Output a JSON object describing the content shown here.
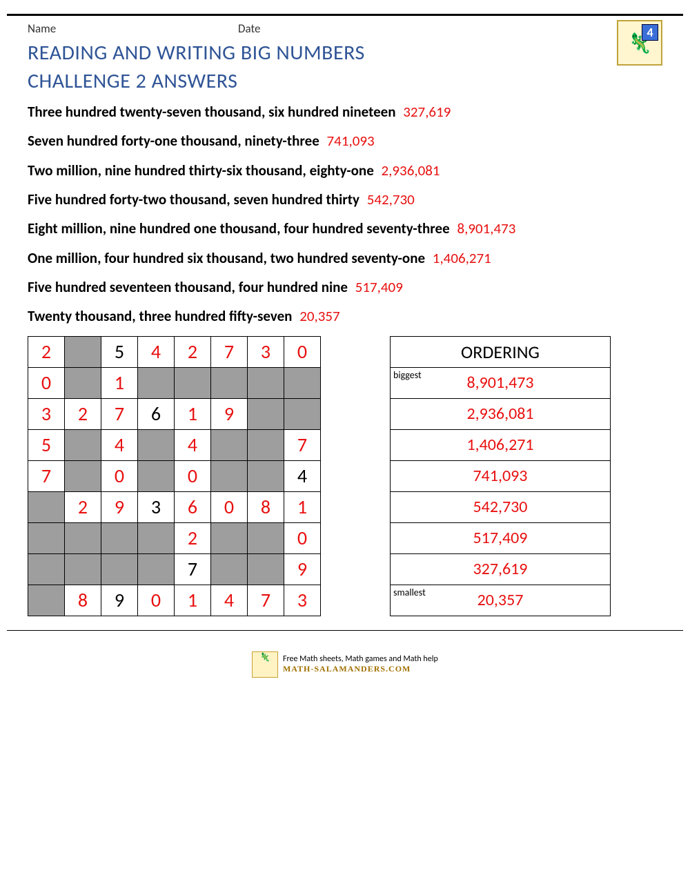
{
  "header": {
    "name_label": "Name",
    "date_label": "Date",
    "badge_number": "4"
  },
  "title_line1": "READING AND WRITING BIG NUMBERS",
  "title_line2": "CHALLENGE 2 ANSWERS",
  "answers": [
    {
      "words": "Three hundred twenty-seven thousand, six hundred nineteen",
      "number": "327,619"
    },
    {
      "words": "Seven hundred forty-one thousand, ninety-three",
      "number": "741,093"
    },
    {
      "words": "Two million, nine hundred thirty-six thousand, eighty-one",
      "number": "2,936,081"
    },
    {
      "words": "Five hundred forty-two thousand, seven hundred thirty",
      "number": "542,730"
    },
    {
      "words": "Eight million, nine hundred one thousand, four hundred seventy-three",
      "number": "8,901,473"
    },
    {
      "words": "One million, four hundred six thousand, two hundred seventy-one",
      "number": "1,406,271"
    },
    {
      "words": "Five hundred seventeen thousand, four hundred nine",
      "number": "517,409"
    },
    {
      "words": "Twenty thousand, three hundred fifty-seven",
      "number": "20,357"
    }
  ],
  "grid": {
    "cell_size": 50,
    "gray_color": "#9e9e9e",
    "red_color": "#e81010",
    "rows": [
      [
        {
          "v": "2",
          "c": "red"
        },
        {
          "v": "",
          "c": "gray"
        },
        {
          "v": "5",
          "c": "blk"
        },
        {
          "v": "4",
          "c": "red"
        },
        {
          "v": "2",
          "c": "red"
        },
        {
          "v": "7",
          "c": "red"
        },
        {
          "v": "3",
          "c": "red"
        },
        {
          "v": "0",
          "c": "red"
        }
      ],
      [
        {
          "v": "0",
          "c": "red"
        },
        {
          "v": "",
          "c": "gray"
        },
        {
          "v": "1",
          "c": "red"
        },
        {
          "v": "",
          "c": "gray"
        },
        {
          "v": "",
          "c": "gray"
        },
        {
          "v": "",
          "c": "gray"
        },
        {
          "v": "",
          "c": "gray"
        },
        {
          "v": "",
          "c": "gray"
        }
      ],
      [
        {
          "v": "3",
          "c": "red"
        },
        {
          "v": "2",
          "c": "red"
        },
        {
          "v": "7",
          "c": "red"
        },
        {
          "v": "6",
          "c": "blk"
        },
        {
          "v": "1",
          "c": "red"
        },
        {
          "v": "9",
          "c": "red"
        },
        {
          "v": "",
          "c": "gray"
        },
        {
          "v": "",
          "c": "gray"
        }
      ],
      [
        {
          "v": "5",
          "c": "red"
        },
        {
          "v": "",
          "c": "gray"
        },
        {
          "v": "4",
          "c": "red"
        },
        {
          "v": "",
          "c": "gray"
        },
        {
          "v": "4",
          "c": "red"
        },
        {
          "v": "",
          "c": "gray"
        },
        {
          "v": "",
          "c": "gray"
        },
        {
          "v": "7",
          "c": "red"
        }
      ],
      [
        {
          "v": "7",
          "c": "red"
        },
        {
          "v": "",
          "c": "gray"
        },
        {
          "v": "0",
          "c": "red"
        },
        {
          "v": "",
          "c": "gray"
        },
        {
          "v": "0",
          "c": "red"
        },
        {
          "v": "",
          "c": "gray"
        },
        {
          "v": "",
          "c": "gray"
        },
        {
          "v": "4",
          "c": "blk"
        }
      ],
      [
        {
          "v": "",
          "c": "gray"
        },
        {
          "v": "2",
          "c": "red"
        },
        {
          "v": "9",
          "c": "red"
        },
        {
          "v": "3",
          "c": "blk"
        },
        {
          "v": "6",
          "c": "red"
        },
        {
          "v": "0",
          "c": "red"
        },
        {
          "v": "8",
          "c": "red"
        },
        {
          "v": "1",
          "c": "red"
        }
      ],
      [
        {
          "v": "",
          "c": "gray"
        },
        {
          "v": "",
          "c": "gray"
        },
        {
          "v": "",
          "c": "gray"
        },
        {
          "v": "",
          "c": "gray"
        },
        {
          "v": "2",
          "c": "red"
        },
        {
          "v": "",
          "c": "gray"
        },
        {
          "v": "",
          "c": "gray"
        },
        {
          "v": "0",
          "c": "red"
        }
      ],
      [
        {
          "v": "",
          "c": "gray"
        },
        {
          "v": "",
          "c": "gray"
        },
        {
          "v": "",
          "c": "gray"
        },
        {
          "v": "",
          "c": "gray"
        },
        {
          "v": "7",
          "c": "blk"
        },
        {
          "v": "",
          "c": "gray"
        },
        {
          "v": "",
          "c": "gray"
        },
        {
          "v": "9",
          "c": "red"
        }
      ],
      [
        {
          "v": "",
          "c": "gray"
        },
        {
          "v": "8",
          "c": "red"
        },
        {
          "v": "9",
          "c": "blk"
        },
        {
          "v": "0",
          "c": "red"
        },
        {
          "v": "1",
          "c": "red"
        },
        {
          "v": "4",
          "c": "red"
        },
        {
          "v": "7",
          "c": "red"
        },
        {
          "v": "3",
          "c": "red"
        }
      ]
    ]
  },
  "ordering": {
    "title": "ORDERING",
    "biggest_label": "biggest",
    "smallest_label": "smallest",
    "rows": [
      {
        "tag": "biggest",
        "value": "8,901,473"
      },
      {
        "tag": "",
        "value": "2,936,081"
      },
      {
        "tag": "",
        "value": "1,406,271"
      },
      {
        "tag": "",
        "value": "741,093"
      },
      {
        "tag": "",
        "value": "542,730"
      },
      {
        "tag": "",
        "value": "517,409"
      },
      {
        "tag": "",
        "value": "327,619"
      },
      {
        "tag": "smallest",
        "value": "20,357"
      }
    ]
  },
  "footer": {
    "tagline": "Free Math sheets, Math games and Math help",
    "site": "MATH-SALAMANDERS.COM"
  }
}
